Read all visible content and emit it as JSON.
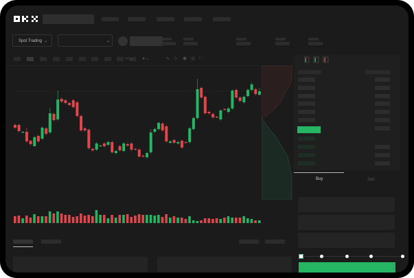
{
  "header": {
    "logo": "OKX"
  },
  "market_selector": {
    "label": "Spot Trading",
    "chevron": "chevron-down-icon"
  },
  "pair_selector": {
    "value": "",
    "chevron": "chevron-down-icon"
  },
  "order_form": {
    "tabs": [
      {
        "label": "Buy",
        "active": true
      },
      {
        "label": "Sell",
        "active": false
      }
    ],
    "amount_percent": 0
  },
  "colors": {
    "up": "#26b663",
    "down": "#e0474c",
    "background": "#1b1b1b",
    "accent": "#26b663"
  },
  "chart_data": {
    "type": "candlestick",
    "title": "",
    "grid": false,
    "candles": [
      [
        68,
        64,
        70,
        62
      ],
      [
        68,
        59,
        70,
        57
      ],
      [
        57,
        58,
        59,
        56
      ],
      [
        58,
        44,
        64,
        42
      ],
      [
        45,
        40,
        46,
        38
      ],
      [
        37,
        50,
        38,
        52
      ],
      [
        52,
        44,
        54,
        42
      ],
      [
        48,
        64,
        46,
        66
      ],
      [
        63,
        55,
        65,
        53
      ],
      [
        57,
        85,
        55,
        93
      ],
      [
        84,
        75,
        86,
        73
      ],
      [
        76,
        105,
        74,
        118
      ],
      [
        106,
        102,
        108,
        100
      ],
      [
        104,
        100,
        106,
        98
      ],
      [
        100,
        97,
        102,
        95
      ],
      [
        104,
        94,
        106,
        92
      ],
      [
        101,
        81,
        103,
        79
      ],
      [
        81,
        60,
        83,
        58
      ],
      [
        63,
        60,
        65,
        58
      ],
      [
        61,
        34,
        63,
        32
      ],
      [
        33,
        31,
        35,
        29
      ],
      [
        32,
        41,
        30,
        43
      ],
      [
        37,
        38,
        36,
        39
      ],
      [
        41,
        37,
        43,
        35
      ],
      [
        39,
        43,
        37,
        45
      ],
      [
        43,
        28,
        45,
        26
      ],
      [
        27,
        30,
        25,
        32
      ],
      [
        37,
        31,
        39,
        29
      ],
      [
        30,
        41,
        28,
        43
      ],
      [
        40,
        38,
        42,
        36
      ],
      [
        41,
        32,
        43,
        30
      ],
      [
        33,
        32,
        35,
        31
      ],
      [
        32,
        22,
        34,
        20
      ],
      [
        23,
        22,
        25,
        21
      ],
      [
        21,
        27,
        19,
        29
      ],
      [
        28,
        57,
        26,
        62
      ],
      [
        58,
        62,
        56,
        64
      ],
      [
        62,
        71,
        60,
        73
      ],
      [
        70,
        60,
        72,
        58
      ],
      [
        66,
        44,
        68,
        42
      ],
      [
        42,
        44,
        40,
        46
      ],
      [
        46,
        42,
        48,
        40
      ],
      [
        41,
        43,
        39,
        45
      ],
      [
        45,
        35,
        47,
        33
      ],
      [
        43,
        42,
        44,
        41
      ],
      [
        43,
        63,
        41,
        65
      ],
      [
        62,
        78,
        60,
        80
      ],
      [
        78,
        120,
        76,
        135
      ],
      [
        122,
        108,
        124,
        106
      ],
      [
        109,
        85,
        111,
        83
      ],
      [
        87,
        85,
        89,
        83
      ],
      [
        84,
        79,
        86,
        77
      ],
      [
        80,
        79,
        81,
        78
      ],
      [
        76,
        89,
        74,
        91
      ],
      [
        91,
        90,
        93,
        89
      ],
      [
        87,
        92,
        85,
        94
      ],
      [
        92,
        118,
        90,
        120
      ],
      [
        119,
        108,
        121,
        106
      ],
      [
        108,
        103,
        110,
        101
      ],
      [
        101,
        109,
        99,
        111
      ],
      [
        110,
        119,
        108,
        121
      ],
      [
        119,
        127,
        117,
        130
      ],
      [
        120,
        113,
        122,
        111
      ],
      [
        112,
        117,
        110,
        122
      ]
    ],
    "volume": [
      10,
      11,
      7,
      11,
      8,
      13,
      10,
      10,
      10,
      17,
      14,
      17,
      14,
      12,
      12,
      9,
      10,
      14,
      11,
      12,
      10,
      19,
      12,
      12,
      7,
      12,
      8,
      12,
      12,
      13,
      9,
      11,
      13,
      12,
      12,
      12,
      11,
      12,
      9,
      13,
      8,
      10,
      8,
      8,
      6,
      10,
      4,
      3,
      4,
      7,
      7,
      6,
      7,
      6,
      8,
      10,
      8,
      8,
      8,
      10,
      7,
      6,
      4,
      4
    ]
  }
}
